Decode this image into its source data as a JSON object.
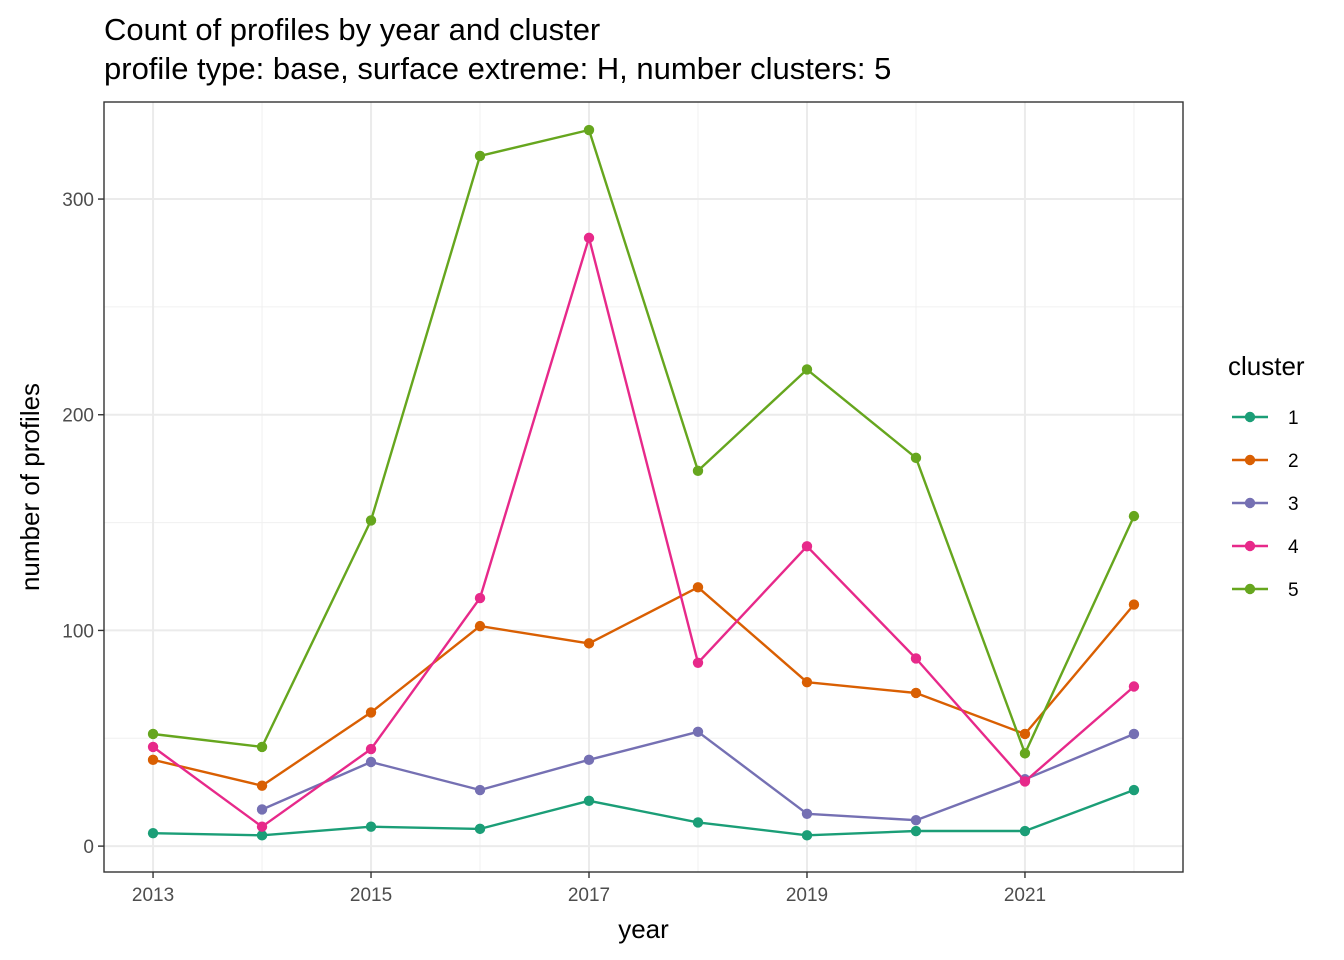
{
  "chart_data": {
    "type": "line",
    "title": "Count of profiles by year and cluster",
    "subtitle": "profile type: base, surface extreme: H, number clusters: 5",
    "xlabel": "year",
    "ylabel": "number of profiles",
    "xlim": [
      2012.55,
      2022.45
    ],
    "ylim": [
      -12,
      345
    ],
    "x_ticks": [
      2013,
      2015,
      2017,
      2019,
      2021
    ],
    "y_ticks": [
      0,
      100,
      200,
      300
    ],
    "grid": true,
    "legend": {
      "title": "cluster",
      "placement": "right"
    },
    "series": [
      {
        "name": "1",
        "color": "#1B9E77",
        "points": [
          [
            2013,
            6
          ],
          [
            2014,
            5
          ],
          [
            2015,
            9
          ],
          [
            2016,
            8
          ],
          [
            2017,
            21
          ],
          [
            2018,
            11
          ],
          [
            2019,
            5
          ],
          [
            2020,
            7
          ],
          [
            2021,
            7
          ],
          [
            2022,
            26
          ]
        ]
      },
      {
        "name": "2",
        "color": "#D95F02",
        "points": [
          [
            2013,
            40
          ],
          [
            2014,
            28
          ],
          [
            2015,
            62
          ],
          [
            2016,
            102
          ],
          [
            2017,
            94
          ],
          [
            2018,
            120
          ],
          [
            2019,
            76
          ],
          [
            2020,
            71
          ],
          [
            2021,
            52
          ],
          [
            2022,
            112
          ]
        ]
      },
      {
        "name": "3",
        "color": "#7570B3",
        "points": [
          [
            2014,
            17
          ],
          [
            2015,
            39
          ],
          [
            2016,
            26
          ],
          [
            2017,
            40
          ],
          [
            2018,
            53
          ],
          [
            2019,
            15
          ],
          [
            2020,
            12
          ],
          [
            2021,
            31
          ],
          [
            2022,
            52
          ]
        ]
      },
      {
        "name": "4",
        "color": "#E7298A",
        "points": [
          [
            2013,
            46
          ],
          [
            2014,
            9
          ],
          [
            2015,
            45
          ],
          [
            2016,
            115
          ],
          [
            2017,
            282
          ],
          [
            2018,
            85
          ],
          [
            2019,
            139
          ],
          [
            2020,
            87
          ],
          [
            2021,
            30
          ],
          [
            2022,
            74
          ]
        ]
      },
      {
        "name": "5",
        "color": "#66A61E",
        "points": [
          [
            2013,
            52
          ],
          [
            2014,
            46
          ],
          [
            2015,
            151
          ],
          [
            2016,
            320
          ],
          [
            2017,
            332
          ],
          [
            2018,
            174
          ],
          [
            2019,
            221
          ],
          [
            2020,
            180
          ],
          [
            2021,
            43
          ],
          [
            2022,
            153
          ]
        ]
      }
    ]
  }
}
